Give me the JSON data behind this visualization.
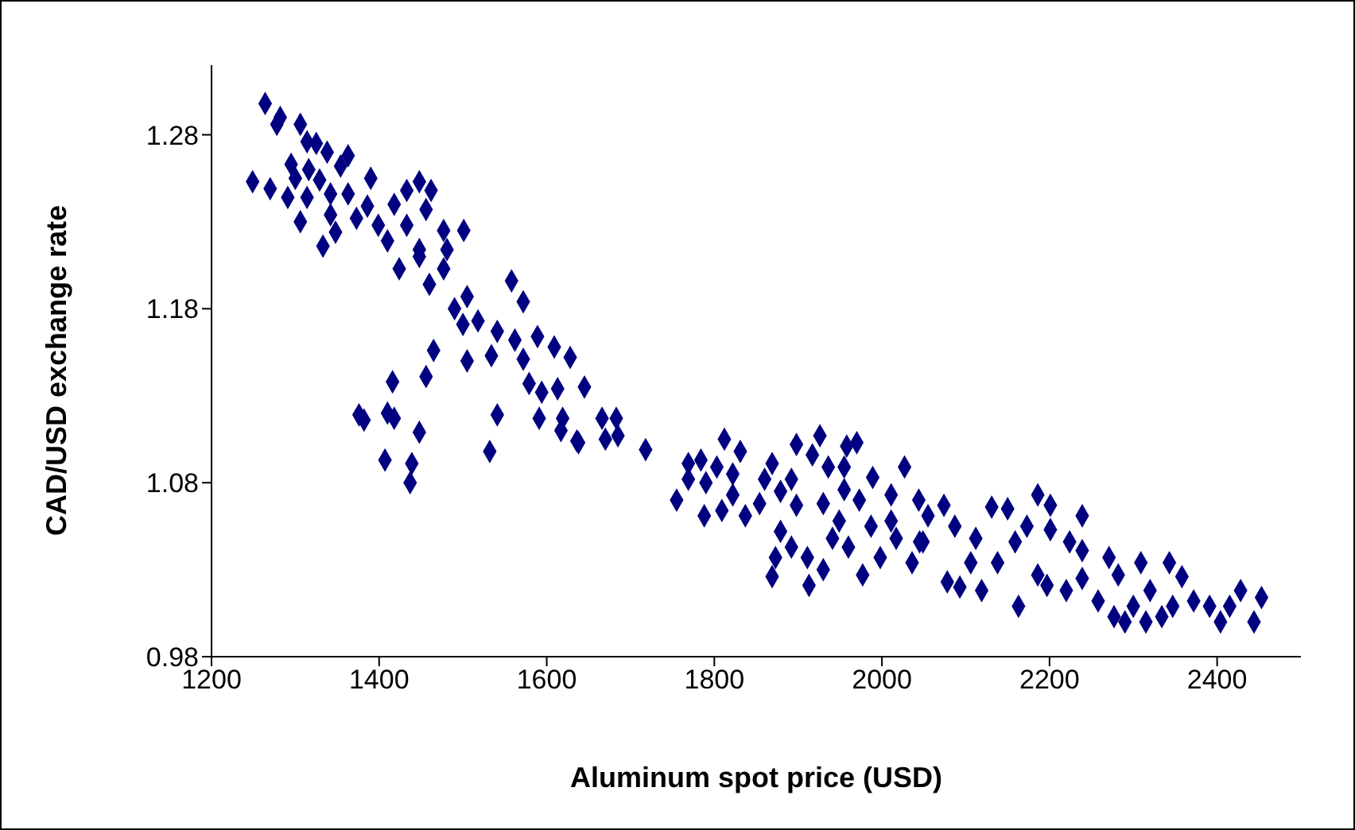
{
  "chart_data": {
    "type": "scatter",
    "xlabel": "Aluminum spot price (USD)",
    "ylabel": "CAD/USD exchange rate",
    "xlim": [
      1200,
      2500
    ],
    "xticks": [
      1200,
      1400,
      1600,
      1800,
      2000,
      2200,
      2400
    ],
    "ylim": [
      0.98,
      1.32
    ],
    "yticks": [
      0.98,
      1.08,
      1.18,
      1.28
    ],
    "grid": false,
    "legend": false,
    "marker": "diamond",
    "series": [
      {
        "color": "#000080",
        "x": [
          1264,
          1282,
          1278,
          1306,
          1314,
          1325,
          1338,
          1363,
          1354,
          1295,
          1316,
          1300,
          1249,
          1270,
          1329,
          1342,
          1363,
          1291,
          1314,
          1390,
          1306,
          1333,
          1348,
          1342,
          1373,
          1386,
          1399,
          1410,
          1424,
          1418,
          1433,
          1448,
          1462,
          1456,
          1433,
          1448,
          1448,
          1477,
          1481,
          1501,
          1477,
          1460,
          1558,
          1572,
          1505,
          1490,
          1500,
          1518,
          1541,
          1562,
          1589,
          1609,
          1628,
          1465,
          1505,
          1534,
          1572,
          1579,
          1594,
          1613,
          1645,
          1541,
          1591,
          1619,
          1617,
          1636,
          1532,
          1456,
          1416,
          1376,
          1382,
          1410,
          1418,
          1448,
          1407,
          1439,
          1437,
          1666,
          1683,
          1638,
          1670,
          1685,
          1718,
          1812,
          1831,
          1898,
          1926,
          1917,
          1958,
          1970,
          1936,
          1955,
          2027,
          1769,
          1784,
          1803,
          1769,
          1790,
          1822,
          1869,
          1860,
          1892,
          1989,
          1755,
          1788,
          1809,
          1822,
          1837,
          1854,
          1879,
          1898,
          1930,
          1955,
          1973,
          2011,
          2044,
          1879,
          1892,
          1911,
          1873,
          1869,
          1913,
          1930,
          1941,
          1960,
          1977,
          1998,
          2017,
          2036,
          2045,
          1949,
          1987,
          2011,
          2074,
          2055,
          2049,
          2087,
          2112,
          2078,
          2093,
          2119,
          2131,
          2150,
          2106,
          2138,
          2159,
          2173,
          2186,
          2201,
          2239,
          2201,
          2224,
          2163,
          2186,
          2197,
          2220,
          2239,
          2239,
          2258,
          2271,
          2282,
          2290,
          2309,
          2320,
          2334,
          2343,
          2358,
          2347,
          2372,
          2391,
          2404,
          2415,
          2428,
          2444,
          2453,
          2300,
          2315,
          2277
        ],
        "values": [
          1.298,
          1.29,
          1.286,
          1.286,
          1.276,
          1.275,
          1.27,
          1.268,
          1.262,
          1.263,
          1.26,
          1.255,
          1.253,
          1.249,
          1.254,
          1.246,
          1.246,
          1.244,
          1.244,
          1.255,
          1.23,
          1.216,
          1.224,
          1.234,
          1.232,
          1.239,
          1.228,
          1.219,
          1.203,
          1.24,
          1.248,
          1.253,
          1.248,
          1.237,
          1.228,
          1.214,
          1.21,
          1.225,
          1.214,
          1.225,
          1.203,
          1.194,
          1.196,
          1.184,
          1.187,
          1.18,
          1.171,
          1.173,
          1.167,
          1.162,
          1.164,
          1.158,
          1.152,
          1.156,
          1.15,
          1.153,
          1.151,
          1.137,
          1.132,
          1.134,
          1.135,
          1.119,
          1.117,
          1.117,
          1.11,
          1.104,
          1.098,
          1.141,
          1.138,
          1.119,
          1.116,
          1.12,
          1.117,
          1.109,
          1.093,
          1.091,
          1.08,
          1.117,
          1.117,
          1.103,
          1.105,
          1.107,
          1.099,
          1.105,
          1.098,
          1.102,
          1.107,
          1.096,
          1.101,
          1.103,
          1.089,
          1.089,
          1.089,
          1.091,
          1.093,
          1.089,
          1.082,
          1.08,
          1.085,
          1.091,
          1.082,
          1.082,
          1.083,
          1.07,
          1.061,
          1.064,
          1.073,
          1.061,
          1.068,
          1.075,
          1.067,
          1.068,
          1.076,
          1.07,
          1.073,
          1.07,
          1.052,
          1.043,
          1.037,
          1.037,
          1.026,
          1.021,
          1.03,
          1.048,
          1.043,
          1.027,
          1.037,
          1.048,
          1.034,
          1.046,
          1.058,
          1.055,
          1.058,
          1.067,
          1.061,
          1.046,
          1.055,
          1.048,
          1.023,
          1.02,
          1.018,
          1.066,
          1.065,
          1.034,
          1.034,
          1.046,
          1.055,
          1.073,
          1.067,
          1.061,
          1.053,
          1.046,
          1.009,
          1.027,
          1.021,
          1.018,
          1.025,
          1.041,
          1.012,
          1.037,
          1.027,
          1.0,
          1.034,
          1.018,
          1.003,
          1.034,
          1.026,
          1.009,
          1.012,
          1.009,
          1.0,
          1.009,
          1.018,
          1.0,
          1.014,
          1.009,
          1.0,
          1.003
        ]
      }
    ]
  }
}
